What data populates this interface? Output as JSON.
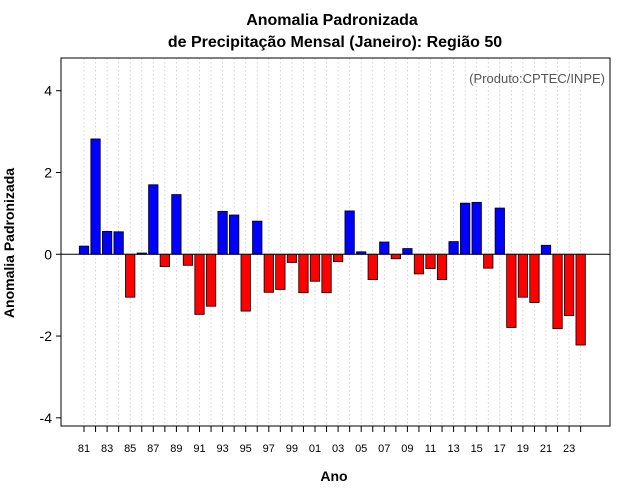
{
  "chart_data": {
    "type": "bar",
    "title": "Anomalia Padronizada",
    "subtitle": "de Precipitação Mensal (Janeiro): Região 50",
    "xlabel": "Ano",
    "ylabel": "Anomalia Padronizada",
    "credit": "(Produto:CPTEC/INPE)",
    "ylim": [
      -4.2,
      4.8
    ],
    "yticks": [
      -4,
      -2,
      0,
      2,
      4
    ],
    "xtick_labels": [
      "81",
      "83",
      "85",
      "87",
      "89",
      "91",
      "93",
      "95",
      "97",
      "99",
      "01",
      "03",
      "05",
      "07",
      "09",
      "11",
      "13",
      "15",
      "17",
      "19",
      "21",
      "23"
    ],
    "grid": true,
    "colors": {
      "positive": "#0000ff",
      "negative": "#ff0000"
    },
    "categories": [
      "1981",
      "1982",
      "1983",
      "1984",
      "1985",
      "1986",
      "1987",
      "1988",
      "1989",
      "1990",
      "1991",
      "1992",
      "1993",
      "1994",
      "1995",
      "1996",
      "1997",
      "1998",
      "1999",
      "2000",
      "2001",
      "2002",
      "2003",
      "2004",
      "2005",
      "2006",
      "2007",
      "2008",
      "2009",
      "2010",
      "2011",
      "2012",
      "2013",
      "2014",
      "2015",
      "2016",
      "2017",
      "2018",
      "2019",
      "2020",
      "2021",
      "2022",
      "2023",
      "2024"
    ],
    "values": [
      0.2,
      2.82,
      0.56,
      0.55,
      -1.05,
      0.03,
      1.7,
      -0.3,
      1.46,
      -0.27,
      -1.47,
      -1.27,
      1.05,
      0.96,
      -1.39,
      0.81,
      -0.93,
      -0.86,
      -0.2,
      -0.94,
      -0.66,
      -0.94,
      -0.18,
      1.06,
      0.06,
      -0.62,
      0.3,
      -0.11,
      0.14,
      -0.48,
      -0.35,
      -0.62,
      0.31,
      1.25,
      1.27,
      -0.34,
      1.13,
      -1.79,
      -1.05,
      -1.18,
      0.22,
      -1.82,
      -1.5,
      -2.22
    ]
  }
}
